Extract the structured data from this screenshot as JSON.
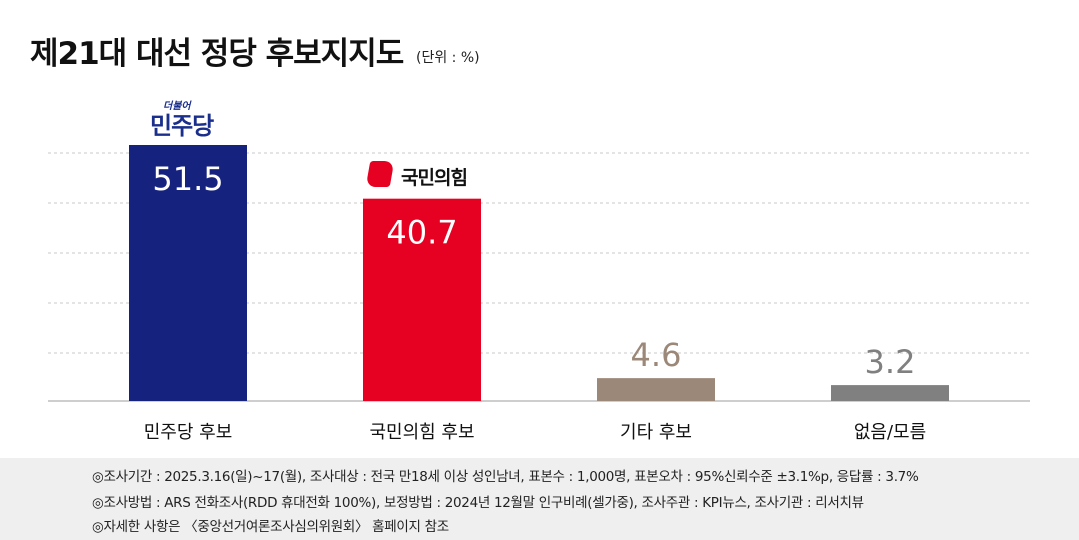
{
  "header": {
    "title": "제21대 대선 정당 후보지지도",
    "unit": "(단위 : %)"
  },
  "logos": {
    "democratic_small": "더불어",
    "democratic": "민주당",
    "ppp": "국민의힘"
  },
  "chart_data": {
    "type": "bar",
    "categories": [
      "민주당 후보",
      "국민의힘 후보",
      "기타 후보",
      "없음/모름"
    ],
    "values": [
      51.5,
      40.7,
      4.6,
      3.2
    ],
    "value_labels": [
      "51.5",
      "40.7",
      "4.6",
      "3.2"
    ],
    "colors": [
      "#15237f",
      "#e60021",
      "#9c8878",
      "#808080"
    ],
    "label_colors": [
      "#ffffff",
      "#ffffff",
      "#9c8878",
      "#808080"
    ],
    "label_inside": [
      true,
      true,
      false,
      false
    ],
    "ylim": [
      0,
      52
    ],
    "grid": true,
    "title": "제21대 대선 정당 후보지지도"
  },
  "footnotes": [
    "◎조사기간 : 2025.3.16(일)~17(월), 조사대상 : 전국 만18세 이상 성인남녀, 표본수 : 1,000명, 표본오차 : 95%신뢰수준 ±3.1%p, 응답률 : 3.7%",
    "◎조사방법 : ARS 전화조사(RDD 휴대전화 100%), 보정방법 : 2024년 12월말 인구비례(셀가중), 조사주관 : KPI뉴스, 조사기관 : 리서치뷰",
    "◎자세한 사항은 〈중앙선거여론조사심의위원회〉 홈페이지 참조"
  ]
}
